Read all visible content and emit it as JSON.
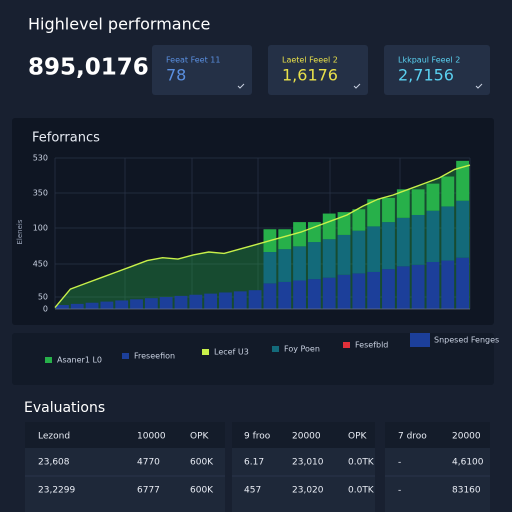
{
  "header": {
    "title": "Highlevel performance",
    "total": "895,0176"
  },
  "cards": [
    {
      "label": "Feeat Feet 11",
      "value": "78",
      "color": "#5a8fe0"
    },
    {
      "label": "Laetel Feeel 2",
      "value": "1,6176",
      "color": "#e8e04a"
    },
    {
      "label": "Lkkpaul Feeel 2",
      "value": "2,7156",
      "color": "#5ad0f0"
    }
  ],
  "chart": {
    "type": "bar",
    "title": "Feforrancs",
    "y_axis_title": "Eleneis",
    "y_axis_labels": [
      "530",
      "350",
      "100",
      "450",
      "50",
      "0"
    ],
    "ylim": [
      0,
      530
    ],
    "series": [
      {
        "name": "Freseefion",
        "color": "#1c3f9a",
        "values": [
          14,
          18,
          22,
          26,
          30,
          34,
          38,
          42,
          46,
          50,
          54,
          58,
          62,
          66,
          90,
          95,
          100,
          105,
          110,
          120,
          125,
          130,
          140,
          150,
          155,
          165,
          170,
          180
        ]
      },
      {
        "name": "Foy Poen",
        "color": "#136a7a",
        "values": [
          0,
          0,
          0,
          0,
          0,
          0,
          0,
          0,
          0,
          0,
          0,
          0,
          0,
          0,
          110,
          115,
          120,
          130,
          135,
          140,
          150,
          160,
          165,
          170,
          175,
          180,
          190,
          200
        ]
      },
      {
        "name": "Asaner1 L0",
        "color": "#27b04a",
        "values": [
          0,
          0,
          0,
          0,
          0,
          0,
          0,
          0,
          0,
          0,
          0,
          0,
          0,
          0,
          80,
          70,
          85,
          70,
          90,
          80,
          75,
          95,
          85,
          100,
          90,
          95,
          105,
          140
        ]
      }
    ],
    "line": {
      "name": "Lecef U3",
      "color": "#c8f04a",
      "values": [
        5,
        70,
        90,
        110,
        130,
        150,
        170,
        180,
        175,
        190,
        200,
        195,
        210,
        225,
        240,
        255,
        270,
        290,
        310,
        330,
        360,
        385,
        400,
        420,
        440,
        460,
        490,
        505
      ]
    },
    "legend_extra": [
      {
        "name": "Fesefbld",
        "color": "#e0303a"
      },
      {
        "name": "Snpesed Fenges",
        "color": "#1c3f9a"
      }
    ]
  },
  "evaluations": {
    "title": "Evaluations",
    "tables": [
      {
        "header": [
          "Lezond",
          "10000",
          "OPK"
        ],
        "rows": [
          [
            "23,608",
            "4770",
            "600K"
          ],
          [
            "23,2299",
            "6777",
            "600K"
          ]
        ]
      },
      {
        "header": [
          "9 froo",
          "20000",
          "OPK"
        ],
        "rows": [
          [
            "6.17",
            "23,010",
            "0.0TK"
          ],
          [
            "457",
            "23,020",
            "0.0TK"
          ]
        ]
      },
      {
        "header": [
          "7 droo",
          "20000"
        ],
        "rows": [
          [
            "-",
            "4,6100"
          ],
          [
            "-",
            "83160"
          ]
        ]
      }
    ]
  }
}
